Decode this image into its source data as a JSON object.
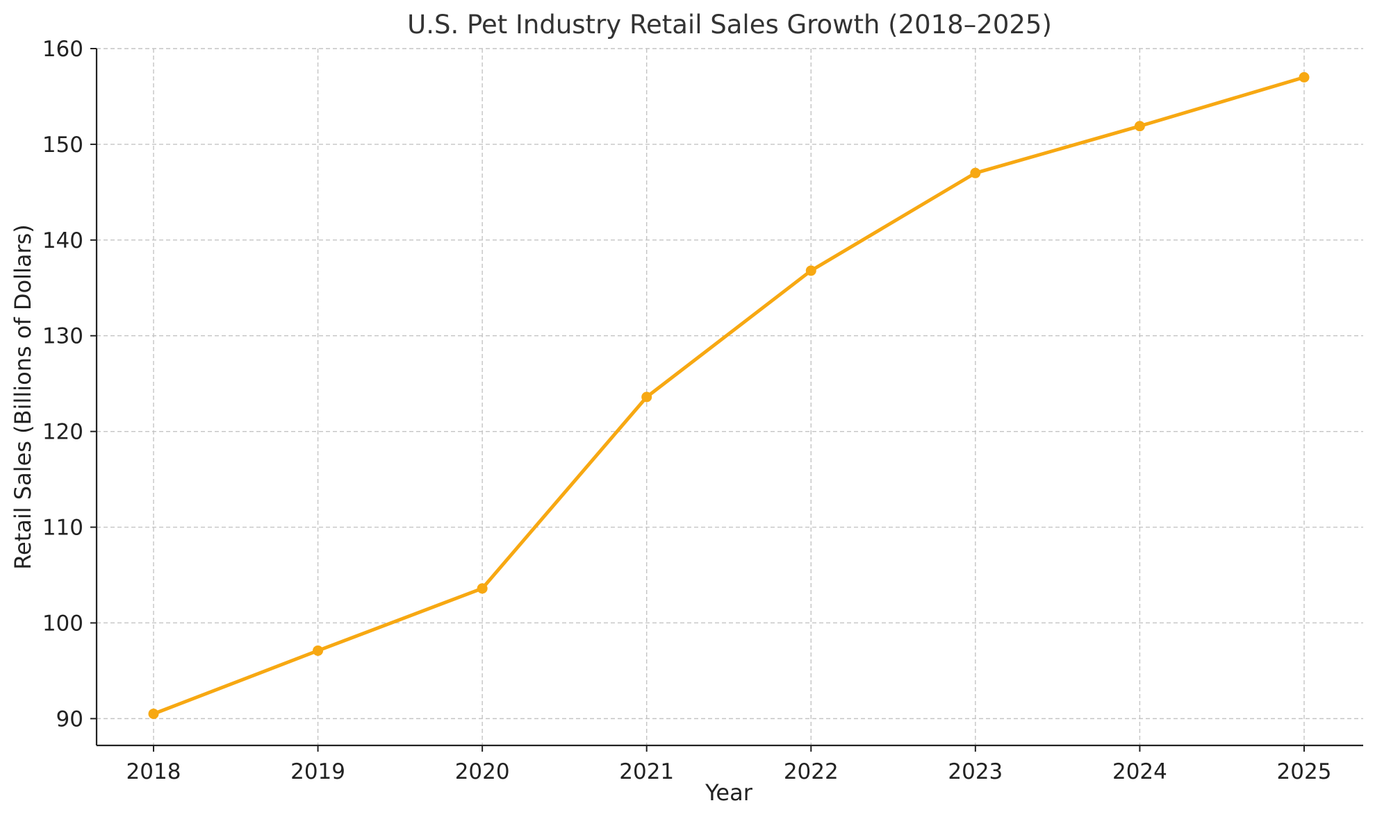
{
  "chart_data": {
    "type": "line",
    "title": "U.S. Pet Industry Retail Sales Growth (2018–2025)",
    "xlabel": "Year",
    "ylabel": "Retail Sales (Billions of Dollars)",
    "x": [
      "2018",
      "2019",
      "2020",
      "2021",
      "2022",
      "2023",
      "2024",
      "2025"
    ],
    "series": [
      {
        "values": [
          90.5,
          97.1,
          103.6,
          123.6,
          136.8,
          147.0,
          151.9,
          157.0
        ],
        "color": "#f7a812",
        "marker": "circle"
      }
    ],
    "yticks": [
      "90",
      "100",
      "110",
      "120",
      "130",
      "140",
      "150",
      "160"
    ],
    "ylim": [
      87.2,
      160
    ],
    "grid": true,
    "legend": "none"
  }
}
